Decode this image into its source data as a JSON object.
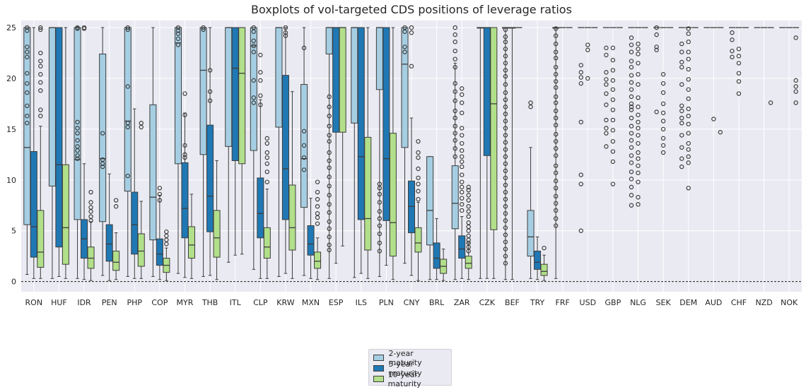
{
  "chart_data": {
    "type": "boxplot",
    "title": "Boxplots of vol-targeted CDS positions of leverage ratios",
    "xlabel": "",
    "ylabel": "",
    "ylim": [
      -1,
      25.7
    ],
    "yticks": [
      0,
      5,
      10,
      15,
      20,
      25
    ],
    "grid": true,
    "reference_line": {
      "y": 0,
      "style": "dashed"
    },
    "legend_position": "bottom-center",
    "categories": [
      "RON",
      "HUF",
      "IDR",
      "PEN",
      "PHP",
      "COP",
      "MYR",
      "THB",
      "ITL",
      "CLP",
      "KRW",
      "MXN",
      "ESP",
      "ILS",
      "PLN",
      "CNY",
      "BRL",
      "ZAR",
      "CZK",
      "BEF",
      "TRY",
      "FRF",
      "USD",
      "GBP",
      "NLG",
      "SEK",
      "DEM",
      "AUD",
      "CHF",
      "NZD",
      "NOK"
    ],
    "series": [
      {
        "name": "2-year maturity",
        "color": "#a6cee3",
        "boxes": [
          [
            0.7,
            5.6,
            13.2,
            25,
            25
          ],
          [
            0.3,
            9.4,
            25,
            25,
            25
          ],
          [
            0.3,
            6.1,
            12,
            25,
            25
          ],
          [
            0.6,
            5.9,
            12.1,
            22.4,
            25
          ],
          [
            0.5,
            8.9,
            15.8,
            25,
            25
          ],
          [
            0.5,
            4.1,
            8.3,
            17.4,
            25
          ],
          [
            0.8,
            11.6,
            23.5,
            25,
            25
          ],
          [
            0.5,
            12.5,
            20.8,
            25,
            25
          ],
          [
            1.9,
            13.3,
            25,
            25,
            25
          ],
          [
            1.2,
            12.9,
            23.2,
            25,
            25
          ],
          [
            0.5,
            15.2,
            25,
            25,
            25
          ],
          [
            0.6,
            7.3,
            12.1,
            19.4,
            25
          ],
          [
            0.3,
            22.4,
            25,
            25,
            25
          ],
          [
            0.4,
            15.6,
            25,
            25,
            25
          ],
          [
            0.5,
            18.9,
            25,
            25,
            25
          ],
          [
            1.8,
            13.2,
            21.4,
            25,
            25
          ],
          [
            0.2,
            3.6,
            7,
            12.3,
            12.3
          ],
          [
            0.2,
            5.2,
            7.7,
            11.4,
            21.5
          ],
          [
            0.3,
            25,
            25,
            25,
            25
          ],
          [
            0.2,
            25,
            25,
            25,
            25
          ],
          [
            0.3,
            2.5,
            4.4,
            7,
            13.2
          ],
          [
            0.3,
            25,
            25,
            25,
            25
          ],
          [
            25,
            25,
            25,
            25,
            25
          ],
          [
            25,
            25,
            25,
            25,
            25
          ],
          [
            25,
            25,
            25,
            25,
            25
          ],
          [
            25,
            25,
            25,
            25,
            25
          ],
          [
            25,
            25,
            25,
            25,
            25
          ],
          [
            25,
            25,
            25,
            25,
            25
          ],
          [
            25,
            25,
            25,
            25,
            25
          ],
          [
            25,
            25,
            25,
            25,
            25
          ],
          [
            25,
            25,
            25,
            25,
            25
          ]
        ]
      },
      {
        "name": "5-year maturity",
        "color": "#1f78b4",
        "boxes": [
          [
            0.3,
            2.4,
            5.4,
            12.8,
            25
          ],
          [
            0.5,
            3.4,
            11.5,
            25,
            25
          ],
          [
            0.2,
            2.3,
            4.2,
            6.1,
            11.6
          ],
          [
            0.1,
            2,
            3.7,
            5.6,
            10.6
          ],
          [
            0.3,
            2.7,
            5.6,
            8.8,
            17
          ],
          [
            0.2,
            1.6,
            2.7,
            4.2,
            8.5
          ],
          [
            0.4,
            4.3,
            7.2,
            11.7,
            16.6
          ],
          [
            0.6,
            4.9,
            8.4,
            15.4,
            25
          ],
          [
            2.6,
            11.9,
            21,
            25,
            25
          ],
          [
            0.3,
            4.3,
            6.7,
            10.2,
            17.9
          ],
          [
            0.8,
            6.1,
            11.1,
            20.3,
            25
          ],
          [
            0.3,
            2.6,
            3.7,
            5.5,
            8.2
          ],
          [
            1.8,
            14.7,
            25,
            25,
            25
          ],
          [
            0.8,
            6.1,
            12.3,
            25,
            25
          ],
          [
            1.6,
            6,
            12.1,
            25,
            25
          ],
          [
            0.6,
            4.8,
            7.4,
            9.9,
            16.1
          ],
          [
            0.2,
            1.3,
            2.3,
            3.8,
            6.2
          ],
          [
            0.3,
            2.3,
            3.2,
            4.5,
            6.4
          ],
          [
            0.3,
            12.4,
            25,
            25,
            25
          ],
          [
            0.2,
            25,
            25,
            25,
            25
          ],
          [
            0.2,
            1.2,
            1.9,
            3,
            4.4
          ],
          [
            25,
            25,
            25,
            25,
            25
          ],
          [
            25,
            25,
            25,
            25,
            25
          ],
          [
            25,
            25,
            25,
            25,
            25
          ],
          [
            25,
            25,
            25,
            25,
            25
          ],
          [
            25,
            25,
            25,
            25,
            25
          ],
          [
            25,
            25,
            25,
            25,
            25
          ],
          [
            25,
            25,
            25,
            25,
            25
          ],
          [
            25,
            25,
            25,
            25,
            25
          ],
          [
            25,
            25,
            25,
            25,
            25
          ],
          [
            25,
            25,
            25,
            25,
            25
          ]
        ]
      },
      {
        "name": "10-year maturity",
        "color": "#b2df8a",
        "boxes": [
          [
            0.3,
            1.4,
            2.9,
            7,
            15.3
          ],
          [
            0.3,
            1.7,
            5.3,
            11.5,
            25
          ],
          [
            0.1,
            1.3,
            2.3,
            3.4,
            5.9
          ],
          [
            0.2,
            1.1,
            1.9,
            3,
            4.8
          ],
          [
            0.3,
            1.5,
            3,
            4.7,
            7.9
          ],
          [
            0.1,
            0.9,
            1.6,
            2.3,
            3.3
          ],
          [
            0.3,
            2.3,
            3.6,
            5.4,
            8.6
          ],
          [
            0.2,
            2.4,
            4.3,
            7,
            11.9
          ],
          [
            2.7,
            11.6,
            20.5,
            25,
            25
          ],
          [
            0.3,
            2.3,
            3.4,
            5.3,
            9.1
          ],
          [
            0.3,
            3.1,
            5.3,
            9.5,
            18.7
          ],
          [
            0.2,
            1.3,
            2,
            2.9,
            4.3
          ],
          [
            3.5,
            14.7,
            25,
            25,
            25
          ],
          [
            0.3,
            3.1,
            6.2,
            14.2,
            25
          ],
          [
            0.2,
            2.5,
            5.8,
            14.6,
            25
          ],
          [
            0.1,
            2.9,
            3.8,
            5.3,
            7.8
          ],
          [
            0.1,
            0.8,
            1.5,
            2.2,
            3.2
          ],
          [
            0.2,
            1.3,
            1.8,
            2.5,
            3.8
          ],
          [
            0.3,
            5.1,
            17.5,
            25,
            25
          ],
          [
            25,
            25,
            25,
            25,
            25
          ],
          [
            0.1,
            0.6,
            1,
            1.7,
            2.6
          ],
          [
            25,
            25,
            25,
            25,
            25
          ],
          [
            25,
            25,
            25,
            25,
            25
          ],
          [
            25,
            25,
            25,
            25,
            25
          ],
          [
            25,
            25,
            25,
            25,
            25
          ],
          [
            25,
            25,
            25,
            25,
            25
          ],
          [
            25,
            25,
            25,
            25,
            25
          ],
          [
            25,
            25,
            25,
            25,
            25
          ],
          [
            25,
            25,
            25,
            25,
            25
          ],
          [
            25,
            25,
            25,
            25,
            25
          ],
          [
            25,
            25,
            25,
            25,
            25
          ]
        ]
      }
    ],
    "outliers": [
      [
        [
          25,
          24.7,
          23.1,
          22.6,
          22.1,
          20.5,
          19.5,
          18.6,
          17.3,
          16.3,
          15.6
        ],
        [],
        [
          25,
          24.9,
          15.7,
          15.1,
          14.6,
          13.9,
          13.3,
          12.9,
          12.4,
          12.1
        ],
        [
          14.6,
          12,
          11.6,
          11.3
        ],
        [
          25,
          24.8,
          19.2,
          15.6,
          15.2,
          10.4
        ],
        [],
        [
          25,
          24.7,
          24.4,
          23.9,
          23.3
        ],
        [
          25,
          24.8
        ],
        [],
        [
          25,
          24.6,
          23.7,
          23.2,
          22.6,
          19.8,
          18.1,
          17.6
        ],
        [],
        [
          23,
          14.8,
          13.4,
          12.2,
          11
        ],
        [
          18.2,
          17.2,
          16.3,
          15.3,
          14.4,
          13.8,
          12.7,
          11.9,
          11.2,
          10.3,
          9.4,
          8.5,
          7.6,
          6.8,
          5.9,
          5.2,
          4.4,
          3.6,
          3.1
        ],
        [],
        [
          9.6,
          9.2,
          8.6,
          7.8,
          6.9,
          6.2,
          5.5,
          4.7,
          3.8,
          3
        ],
        [
          25,
          24.6,
          23.1,
          22.6
        ],
        [],
        [
          25,
          24.3,
          23.6,
          22.7,
          21.9,
          21.1,
          19.5,
          18.7,
          17.8,
          16.8,
          16.1,
          15.3,
          14.6,
          13.9,
          13.1,
          12.3
        ],
        [],
        [
          24.8,
          24.1,
          23.6,
          22.9,
          22.2,
          21.5,
          20.8,
          20.2,
          19.4,
          18.6,
          17.9,
          17.2,
          16.5,
          15.8,
          15.1,
          14.4,
          13.7,
          13,
          12.3,
          11.6,
          10.9,
          10.2,
          9.5,
          8.8,
          8.1,
          7.4,
          6.7,
          6,
          5.3,
          4.6,
          3.9,
          3.2,
          2.5,
          1.8
        ],
        [
          17.6,
          17.2
        ],
        [
          24.9,
          24.2,
          23.4,
          22.6,
          22,
          21.1,
          20.4,
          19.7,
          19.1,
          18.2,
          17.6,
          16.8,
          16.1,
          15.4,
          14.5,
          13.8,
          13.1,
          12.4,
          11.4,
          10.7,
          9.9,
          9.2,
          8.4,
          7.7,
          7,
          6.2,
          5.5
        ],
        [
          21.3,
          20.6,
          20.1,
          19.5,
          15.7,
          10.5,
          9.6,
          5
        ],
        [
          23,
          22.3,
          20.6,
          19.9,
          19.4,
          18.5,
          17.4,
          15.9,
          15.1,
          14.6,
          13.3
        ],
        [
          24,
          23.3,
          22.6,
          21.7,
          21.1,
          20.3,
          19.6,
          18.9,
          18.2,
          17.5,
          16.9,
          17.2,
          16.1,
          15.3,
          14.6,
          13.9,
          13.2,
          12.4,
          11.7,
          10.8,
          10.1,
          9.3,
          8.5,
          7.5
        ],
        [
          25,
          24.3,
          23.1,
          22.8,
          16.7
        ],
        [
          23.4,
          22.6,
          21.6,
          21.1,
          19.4,
          17.3,
          16.8,
          16.1,
          15.6,
          14.4,
          13.2,
          12.1,
          11.3
        ],
        [],
        [
          24.5,
          23.8,
          22.7,
          22.1
        ],
        [],
        []
      ],
      [
        [],
        [],
        [
          25,
          24.9
        ],
        [],
        [],
        [
          9.2,
          8.6,
          8
        ],
        [
          18.5,
          16.4,
          13.4,
          12.5,
          12.2
        ],
        [
          20.8,
          18.7,
          17.8
        ],
        [],
        [
          22.3,
          20.6,
          19.8,
          18.3,
          17.4
        ],
        [
          25,
          24.5,
          24.2
        ],
        [],
        [],
        [],
        [],
        [
          25,
          24.5,
          21.2
        ],
        [],
        [
          19,
          18.4,
          17.6,
          16.6,
          15.1,
          14.4,
          13.6,
          12.9,
          12.3,
          11.8,
          11.3,
          10.5,
          9.8,
          9.3,
          8.8,
          8.2,
          7.6,
          7
        ],
        [],
        [],
        [],
        [],
        [
          23.3,
          22.8,
          20
        ],
        [
          23,
          21.8,
          20.8,
          19.8,
          18.9,
          17.9,
          16.9,
          15.9,
          14.9,
          13.8,
          12.8,
          11.8,
          9.6
        ],
        [
          23.4,
          22.9,
          22.4,
          21.5,
          20.4,
          19.4,
          18.1,
          17.2,
          16.4,
          15.7,
          15.1,
          14.4,
          13.6,
          12.7,
          12.1,
          11.4,
          10.7,
          9.8,
          8.3,
          7.6
        ],
        [
          20.4,
          19.5,
          18.6,
          17.5,
          16.6,
          15.8,
          15,
          14.1,
          13.4,
          12.7
        ],
        [
          24.9,
          24.4,
          23.6,
          22.6,
          21.9,
          20.9,
          19.9,
          18.9,
          18,
          17,
          16.3,
          15.5,
          14.6,
          13.6,
          13,
          12.3,
          11.7,
          9.2
        ],
        [
          16
        ],
        [
          22.9,
          22.2,
          21.5,
          20.5,
          19.7,
          18.5
        ],
        [],
        []
      ],
      [
        [
          25,
          24.8,
          22.5,
          21.7,
          21.2,
          20.4,
          19.6,
          18.8,
          16.9,
          16.3
        ],
        [],
        [
          8.8,
          7.8,
          7.3,
          6.9,
          6.4,
          6
        ],
        [
          8,
          7.4
        ],
        [
          15.6,
          15.2
        ],
        [
          4.9,
          4.5,
          4.1,
          3.7
        ],
        [],
        [],
        [],
        [
          14.1,
          13.6,
          12.7,
          12.2,
          11.6,
          10.8,
          9.8
        ],
        [],
        [
          9.8,
          8.8,
          8.1,
          7.4,
          6.7,
          6.3,
          5.7
        ],
        [],
        [],
        [],
        [
          13.8,
          12.7,
          12.2,
          11.1,
          10.2,
          9.6,
          8.9,
          8.1
        ],
        [],
        [
          9.3,
          9,
          8.5,
          8,
          7.4,
          6.9,
          6.4,
          5.8,
          5.4,
          5,
          4.5,
          4.1,
          3.8,
          3.4,
          3
        ],
        [],
        [],
        [
          3.3
        ],
        [],
        [],
        [],
        [],
        [],
        [],
        [
          14.7
        ],
        [],
        [
          17.6
        ],
        [
          24,
          19.8,
          19.2,
          18.7,
          17.6
        ]
      ]
    ],
    "legend": [
      "2-year maturity",
      "5-year maturity",
      "10-year maturity"
    ]
  }
}
